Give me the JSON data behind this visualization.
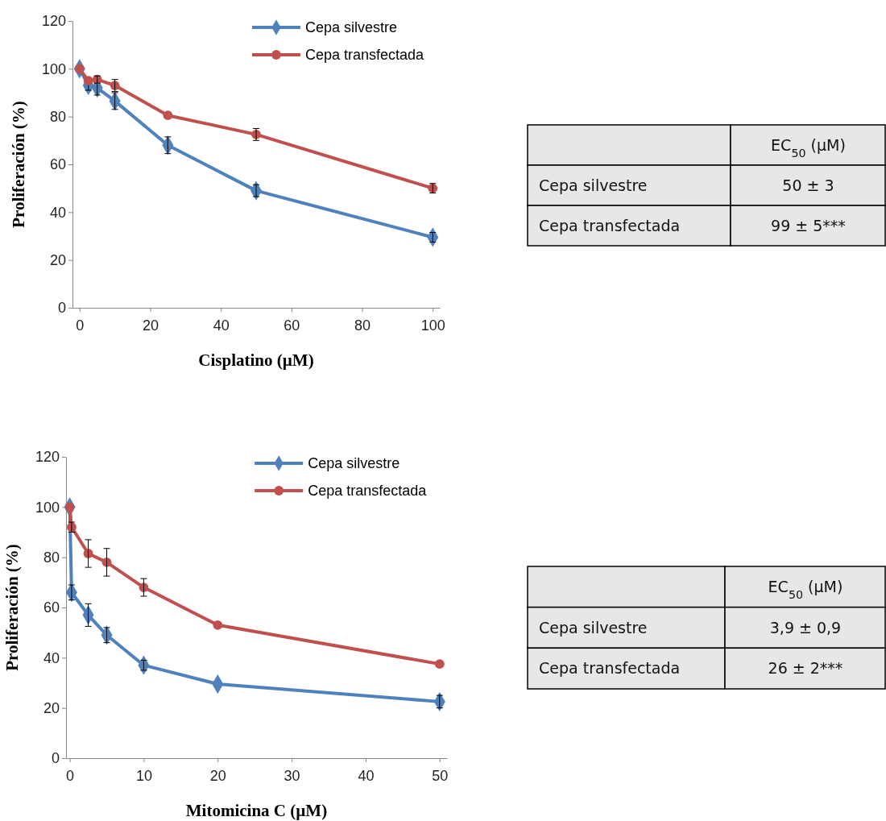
{
  "chart_data": [
    {
      "type": "line",
      "xlabel": "Cisplatino (µM)",
      "ylabel": "Proliferación (%)",
      "xlim": [
        -2,
        102
      ],
      "xticks": [
        0,
        20,
        40,
        60,
        80,
        100
      ],
      "ylim": [
        0,
        120
      ],
      "yticks": [
        0,
        20,
        40,
        60,
        80,
        100,
        120
      ],
      "grid": false,
      "legend": "top right",
      "line_style": "solid",
      "series": [
        {
          "name": "Cepa silvestre",
          "color": "#4f81bd",
          "marker": "diamond",
          "x": [
            0,
            2.5,
            5,
            10,
            25,
            50,
            100
          ],
          "values": [
            100,
            93,
            92,
            86.5,
            68,
            49,
            29.5
          ],
          "errors": [
            null,
            2,
            3,
            3.5,
            3.5,
            2.5,
            2
          ]
        },
        {
          "name": "Cepa transfectada",
          "color": "#c0504d",
          "marker": "circle",
          "x": [
            0,
            2.5,
            5,
            10,
            25,
            50,
            100
          ],
          "values": [
            100,
            95,
            95.5,
            93,
            80.5,
            72.5,
            50
          ],
          "errors": [
            null,
            null,
            1.5,
            2.5,
            null,
            2.5,
            2
          ]
        }
      ]
    },
    {
      "type": "other",
      "annotations": [
        "EC$_{50}$  (µM)",
        "Cepa silvestre",
        "50 ± 3",
        "Cepa transfectada",
        "99 ± 5***"
      ]
    },
    {
      "type": "line",
      "xlabel": "Mitomicina C (µM)",
      "ylabel": "Proliferación (%)",
      "xlim": [
        -0.5,
        51
      ],
      "xticks": [
        0,
        10,
        20,
        30,
        40,
        50
      ],
      "ylim": [
        0,
        120
      ],
      "yticks": [
        0,
        20,
        40,
        60,
        80,
        100,
        120
      ],
      "grid": false,
      "legend": "top right",
      "line_style": "solid",
      "series": [
        {
          "name": "Cepa silvestre",
          "color": "#4f81bd",
          "marker": "diamond",
          "x": [
            0,
            0.25,
            2.5,
            5,
            10,
            20,
            50
          ],
          "values": [
            100,
            66,
            57,
            49,
            37,
            29.5,
            22.5
          ],
          "errors": [
            null,
            3,
            4.5,
            3,
            2,
            null,
            2.5
          ]
        },
        {
          "name": "Cepa transfectada",
          "color": "#c0504d",
          "marker": "circle",
          "x": [
            0,
            0.25,
            2.5,
            5,
            10,
            20,
            50
          ],
          "values": [
            100,
            92,
            81.5,
            78,
            68,
            53,
            37.5
          ],
          "errors": [
            null,
            2,
            5.5,
            5.5,
            3.5,
            null,
            null
          ]
        }
      ]
    },
    {
      "type": "other",
      "annotations": [
        "EC$_{50}$ (µM)",
        "Cepa silvestre",
        "3,9 ± 0,9",
        "Cepa transfectada",
        "26 ± 2***"
      ]
    }
  ]
}
